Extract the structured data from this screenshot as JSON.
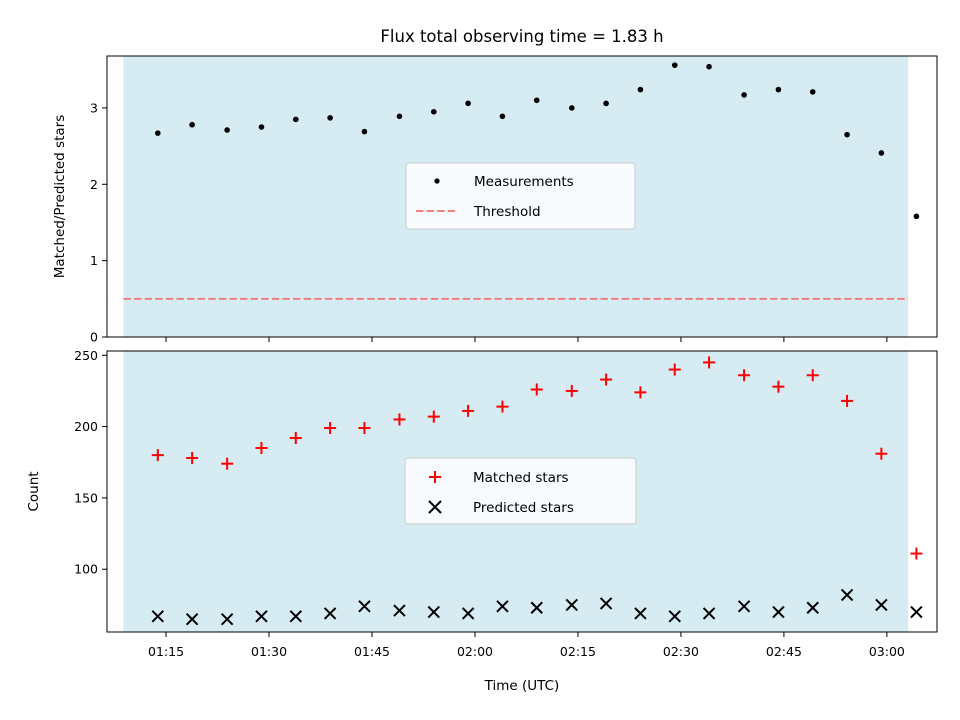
{
  "chart_data": [
    {
      "type": "scatter",
      "title": "Flux total observing time = 1.83 h",
      "ylabel": "Matched/Predicted stars",
      "xlabel": "",
      "x_tick_labels": [
        "01:15",
        "01:30",
        "01:45",
        "02:00",
        "02:15",
        "02:30",
        "02:45",
        "03:00"
      ],
      "x_ticks_min": [
        75,
        90,
        105,
        120,
        135,
        150,
        165,
        180
      ],
      "xlim_min": [
        66.4,
        187.3
      ],
      "ylim": [
        0,
        3.68
      ],
      "yticks": [
        0,
        1,
        2,
        3
      ],
      "shaded_span_min": [
        68.8,
        183.1
      ],
      "shade_color": "#add8e6",
      "grid": false,
      "legend_position": "center",
      "series": [
        {
          "name": "Measurements",
          "marker": "dot",
          "color": "#000000",
          "x_min": [
            73.8,
            78.8,
            83.9,
            88.9,
            93.9,
            98.9,
            103.9,
            109.0,
            114.0,
            119.0,
            124.0,
            129.0,
            134.1,
            139.1,
            144.1,
            149.1,
            154.1,
            159.2,
            164.2,
            169.2,
            174.2,
            179.2,
            184.3
          ],
          "y": [
            2.67,
            2.78,
            2.71,
            2.75,
            2.85,
            2.87,
            2.69,
            2.89,
            2.95,
            3.06,
            2.89,
            3.1,
            3.0,
            3.06,
            3.24,
            3.56,
            3.54,
            3.17,
            3.24,
            3.21,
            2.65,
            2.41,
            1.58
          ]
        },
        {
          "name": "Threshold",
          "style": "dashed",
          "color": "#f08080",
          "y": 0.5
        }
      ]
    },
    {
      "type": "scatter",
      "title": "",
      "ylabel": "Count",
      "xlabel": "Time (UTC)",
      "x_tick_labels": [
        "01:15",
        "01:30",
        "01:45",
        "02:00",
        "02:15",
        "02:30",
        "02:45",
        "03:00"
      ],
      "x_ticks_min": [
        75,
        90,
        105,
        120,
        135,
        150,
        165,
        180
      ],
      "xlim_min": [
        66.4,
        187.3
      ],
      "ylim": [
        56,
        253
      ],
      "yticks": [
        100,
        150,
        200,
        250
      ],
      "shaded_span_min": [
        68.8,
        183.1
      ],
      "shade_color": "#add8e6",
      "grid": false,
      "legend_position": "center",
      "series": [
        {
          "name": "Matched stars",
          "marker": "plus",
          "color": "#ff0000",
          "x_min": [
            73.8,
            78.8,
            83.9,
            88.9,
            93.9,
            98.9,
            103.9,
            109.0,
            114.0,
            119.0,
            124.0,
            129.0,
            134.1,
            139.1,
            144.1,
            149.1,
            154.1,
            159.2,
            164.2,
            169.2,
            174.2,
            179.2,
            184.3
          ],
          "y": [
            180,
            178,
            174,
            185,
            192,
            199,
            199,
            205,
            207,
            211,
            214,
            226,
            225,
            233,
            224,
            240,
            245,
            236,
            228,
            236,
            218,
            181,
            111
          ]
        },
        {
          "name": "Predicted stars",
          "marker": "x",
          "color": "#000000",
          "x_min": [
            73.8,
            78.8,
            83.9,
            88.9,
            93.9,
            98.9,
            103.9,
            109.0,
            114.0,
            119.0,
            124.0,
            129.0,
            134.1,
            139.1,
            144.1,
            149.1,
            154.1,
            159.2,
            164.2,
            169.2,
            174.2,
            179.2,
            184.3
          ],
          "y": [
            67,
            65,
            65,
            67,
            67,
            69,
            74,
            71,
            70,
            69,
            74,
            73,
            75,
            76,
            69,
            67,
            69,
            74,
            70,
            73,
            82,
            75,
            70
          ]
        }
      ]
    }
  ]
}
